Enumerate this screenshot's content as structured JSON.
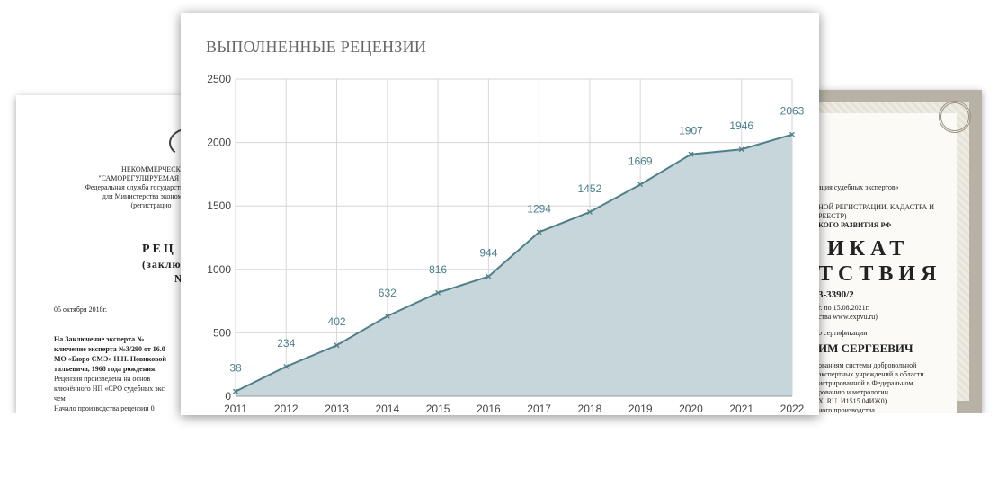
{
  "left_document": {
    "org_lines": [
      "НЕКОММЕРЧЕСК",
      "\"САМОРЕГУЛИРУЕМАЯ ОРГАН",
      "Федеральная служба государственной реги",
      "для Министерства экономическ",
      "(регистрацио"
    ],
    "heading": "РЕЦ",
    "subheading": "(заключени",
    "number_mark": "№",
    "date": "05 октября 2018г.",
    "paragraph_lines": [
      "На Заключение эксперта №",
      "ключение эксперта №3/290 от 16.0",
      "МО «Бюро СМЭ» Н.Н. Новиковой",
      "тальевича, 1968 года рождения.",
      "Рецензия произведена на основ",
      "ключённого НП «СРО судебных экс",
      "чем",
      "Начало производства рецензии 0"
    ]
  },
  "right_document": {
    "assoc_line": "ация судебных экспертов»",
    "registry_lines": [
      "НОЙ РЕГИСТРАЦИИ, КАДАСТРА И",
      "РЕЕСТР)",
      "КОГО РАЗВИТИЯ РФ"
    ],
    "title_line1": "ИКАТ",
    "title_line2": "ТСТВИЯ",
    "number": "3-3390/2",
    "validity": "г. по 15.08.2021г.",
    "site": "ства www.expvu.ru)",
    "certified_label": "о сертификации",
    "name": "ИМ СЕРГЕЕВИЧ",
    "body_lines": [
      "ованиям системы добровольной",
      "экспертных учреждений в области",
      "истрированной в Федеральном",
      "рованию и метрологии",
      "X. RU. И1515.04ИЖ0)",
      "ного производства"
    ]
  },
  "chart_data": {
    "type": "area",
    "title": "ВЫПОЛНЕННЫЕ РЕЦЕНЗИИ",
    "x": [
      "2011",
      "2012",
      "2013",
      "2014",
      "2015",
      "2016",
      "2017",
      "2018",
      "2019",
      "2020",
      "2021",
      "2022"
    ],
    "values": [
      38,
      234,
      402,
      632,
      816,
      944,
      1294,
      1452,
      1669,
      1907,
      1946,
      2063
    ],
    "data_labels": [
      "38",
      "234",
      "402",
      "632",
      "816",
      "944",
      "1294",
      "1452",
      "1669",
      "1907",
      "1946",
      "2063"
    ],
    "y_ticks": [
      "0",
      "500",
      "1000",
      "1500",
      "2000",
      "2500"
    ],
    "ylim": [
      0,
      2500
    ],
    "grid": true,
    "colors": {
      "line": "#4f7f88",
      "fill": "#c6d6db",
      "label": "#4a7f8b",
      "grid": "#d6d6d6"
    }
  }
}
